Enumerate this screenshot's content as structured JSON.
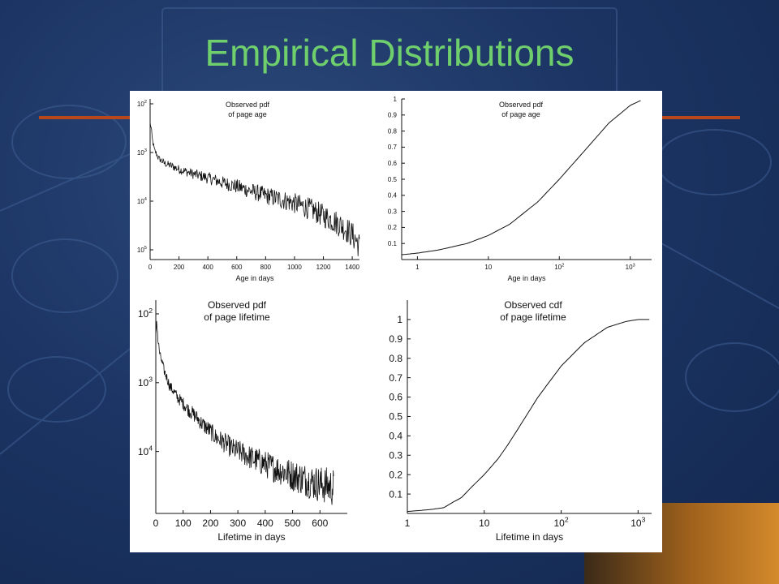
{
  "slide": {
    "title": "Empirical Distributions"
  },
  "colors": {
    "background": "#1c3564",
    "title": "#6fcf6c",
    "rule": "#b8471c",
    "panel": "#ffffff",
    "ink": "#111111"
  },
  "chart_data": [
    {
      "type": "line",
      "title": "Observed pdf\nof page age",
      "xlabel": "Age in days",
      "ylabel": "",
      "x_scale": "linear",
      "y_scale": "log",
      "xlim": [
        0,
        1450
      ],
      "xticks": [
        "0",
        "200",
        "400",
        "600",
        "800",
        "1000",
        "1200",
        "1400"
      ],
      "yticks": [
        {
          "base": "10",
          "exp": "2"
        },
        {
          "base": "10",
          "exp": "3"
        },
        {
          "base": "10",
          "exp": "4"
        },
        {
          "base": "10",
          "exp": "5"
        }
      ],
      "series": [
        {
          "noisy": true,
          "x": [
            0,
            5,
            15,
            30,
            60,
            100,
            200,
            300,
            400,
            500,
            600,
            700,
            800,
            900,
            1000,
            1100,
            1200,
            1300,
            1400,
            1450
          ],
          "y": [
            0.004,
            0.0035,
            0.0018,
            0.0011,
            0.00075,
            0.0006,
            0.00045,
            0.00036,
            0.0003,
            0.00024,
            0.0002,
            0.00016,
            0.00013,
            0.00011,
            9e-05,
            7e-05,
            5e-05,
            3.5e-05,
            2e-05,
            1.2e-05
          ]
        }
      ]
    },
    {
      "type": "line",
      "title": "Observed pdf\nof page age",
      "xlabel": "Age in days",
      "ylabel": "",
      "x_scale": "log",
      "y_scale": "linear",
      "xlim": [
        0.6,
        2000
      ],
      "ylim": [
        0,
        1
      ],
      "xticks": [
        {
          "base": "1",
          "exp": ""
        },
        {
          "base": "10",
          "exp": ""
        },
        {
          "base": "10",
          "exp": "2"
        },
        {
          "base": "10",
          "exp": "3"
        }
      ],
      "yticks": [
        "0.1",
        "0.2",
        "0.3",
        "0.4",
        "0.5",
        "0.6",
        "0.7",
        "0.8",
        "0.9",
        "1"
      ],
      "series": [
        {
          "noisy": false,
          "x": [
            0.6,
            1,
            2,
            5,
            10,
            20,
            50,
            100,
            200,
            500,
            1000,
            1400
          ],
          "y": [
            0.03,
            0.04,
            0.06,
            0.1,
            0.15,
            0.22,
            0.36,
            0.5,
            0.65,
            0.85,
            0.96,
            0.99
          ]
        }
      ]
    },
    {
      "type": "line",
      "title": "Observed pdf\nof page lifetime",
      "xlabel": "Lifetime in days",
      "ylabel": "",
      "x_scale": "linear",
      "y_scale": "log",
      "xlim": [
        0,
        700
      ],
      "xticks": [
        "0",
        "100",
        "200",
        "300",
        "400",
        "500",
        "600"
      ],
      "yticks": [
        {
          "base": "10",
          "exp": "2"
        },
        {
          "base": "10",
          "exp": "3"
        },
        {
          "base": "10",
          "exp": "4"
        }
      ],
      "series": [
        {
          "noisy": true,
          "x": [
            0,
            3,
            8,
            15,
            30,
            50,
            80,
            120,
            170,
            220,
            280,
            350,
            420,
            500,
            580,
            650
          ],
          "y": [
            0.0045,
            0.008,
            0.004,
            0.0025,
            0.0015,
            0.0009,
            0.0006,
            0.0004,
            0.00025,
            0.00016,
            0.00011,
            8e-05,
            6e-05,
            4.5e-05,
            3.5e-05,
            3e-05
          ]
        }
      ]
    },
    {
      "type": "line",
      "title": "Observed cdf\nof page lifetime",
      "xlabel": "Lifetime in days",
      "ylabel": "",
      "x_scale": "log",
      "y_scale": "linear",
      "xlim": [
        1,
        1500
      ],
      "ylim": [
        0,
        1.1
      ],
      "xticks": [
        {
          "base": "1",
          "exp": ""
        },
        {
          "base": "10",
          "exp": ""
        },
        {
          "base": "10",
          "exp": "2"
        },
        {
          "base": "10",
          "exp": "3"
        }
      ],
      "yticks": [
        "0.1",
        "0.2",
        "0.3",
        "0.4",
        "0.5",
        "0.6",
        "0.7",
        "0.8",
        "0.9",
        "1"
      ],
      "series": [
        {
          "noisy": false,
          "x": [
            1,
            2,
            3,
            4,
            5,
            7,
            10,
            15,
            20,
            30,
            50,
            100,
            200,
            400,
            700,
            1000,
            1400
          ],
          "y": [
            0.01,
            0.02,
            0.03,
            0.06,
            0.08,
            0.14,
            0.2,
            0.28,
            0.35,
            0.46,
            0.6,
            0.76,
            0.88,
            0.96,
            0.99,
            1.0,
            1.0
          ]
        }
      ]
    }
  ]
}
